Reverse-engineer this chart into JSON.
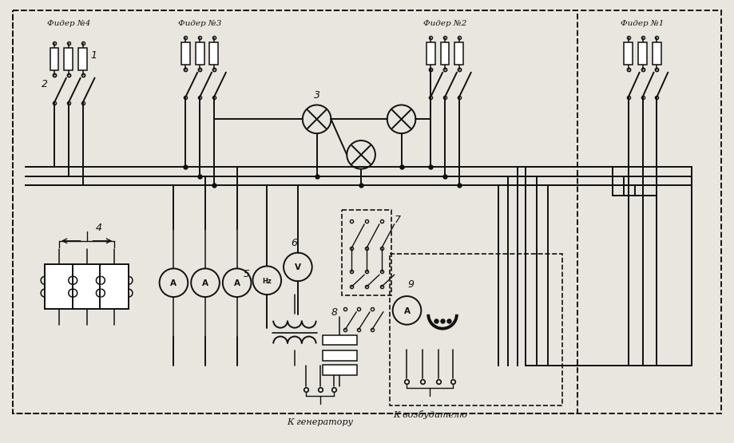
{
  "bg_color": "#e8e6df",
  "line_color": "#111111",
  "figsize": [
    9.19,
    5.55
  ],
  "dpi": 100,
  "feeder_labels": [
    "Фидер №4",
    "Фидер №3",
    "Фидер №2",
    "Фидер №1"
  ],
  "label_k_gen": "К генератору",
  "label_k_exc": "К возбудителю"
}
